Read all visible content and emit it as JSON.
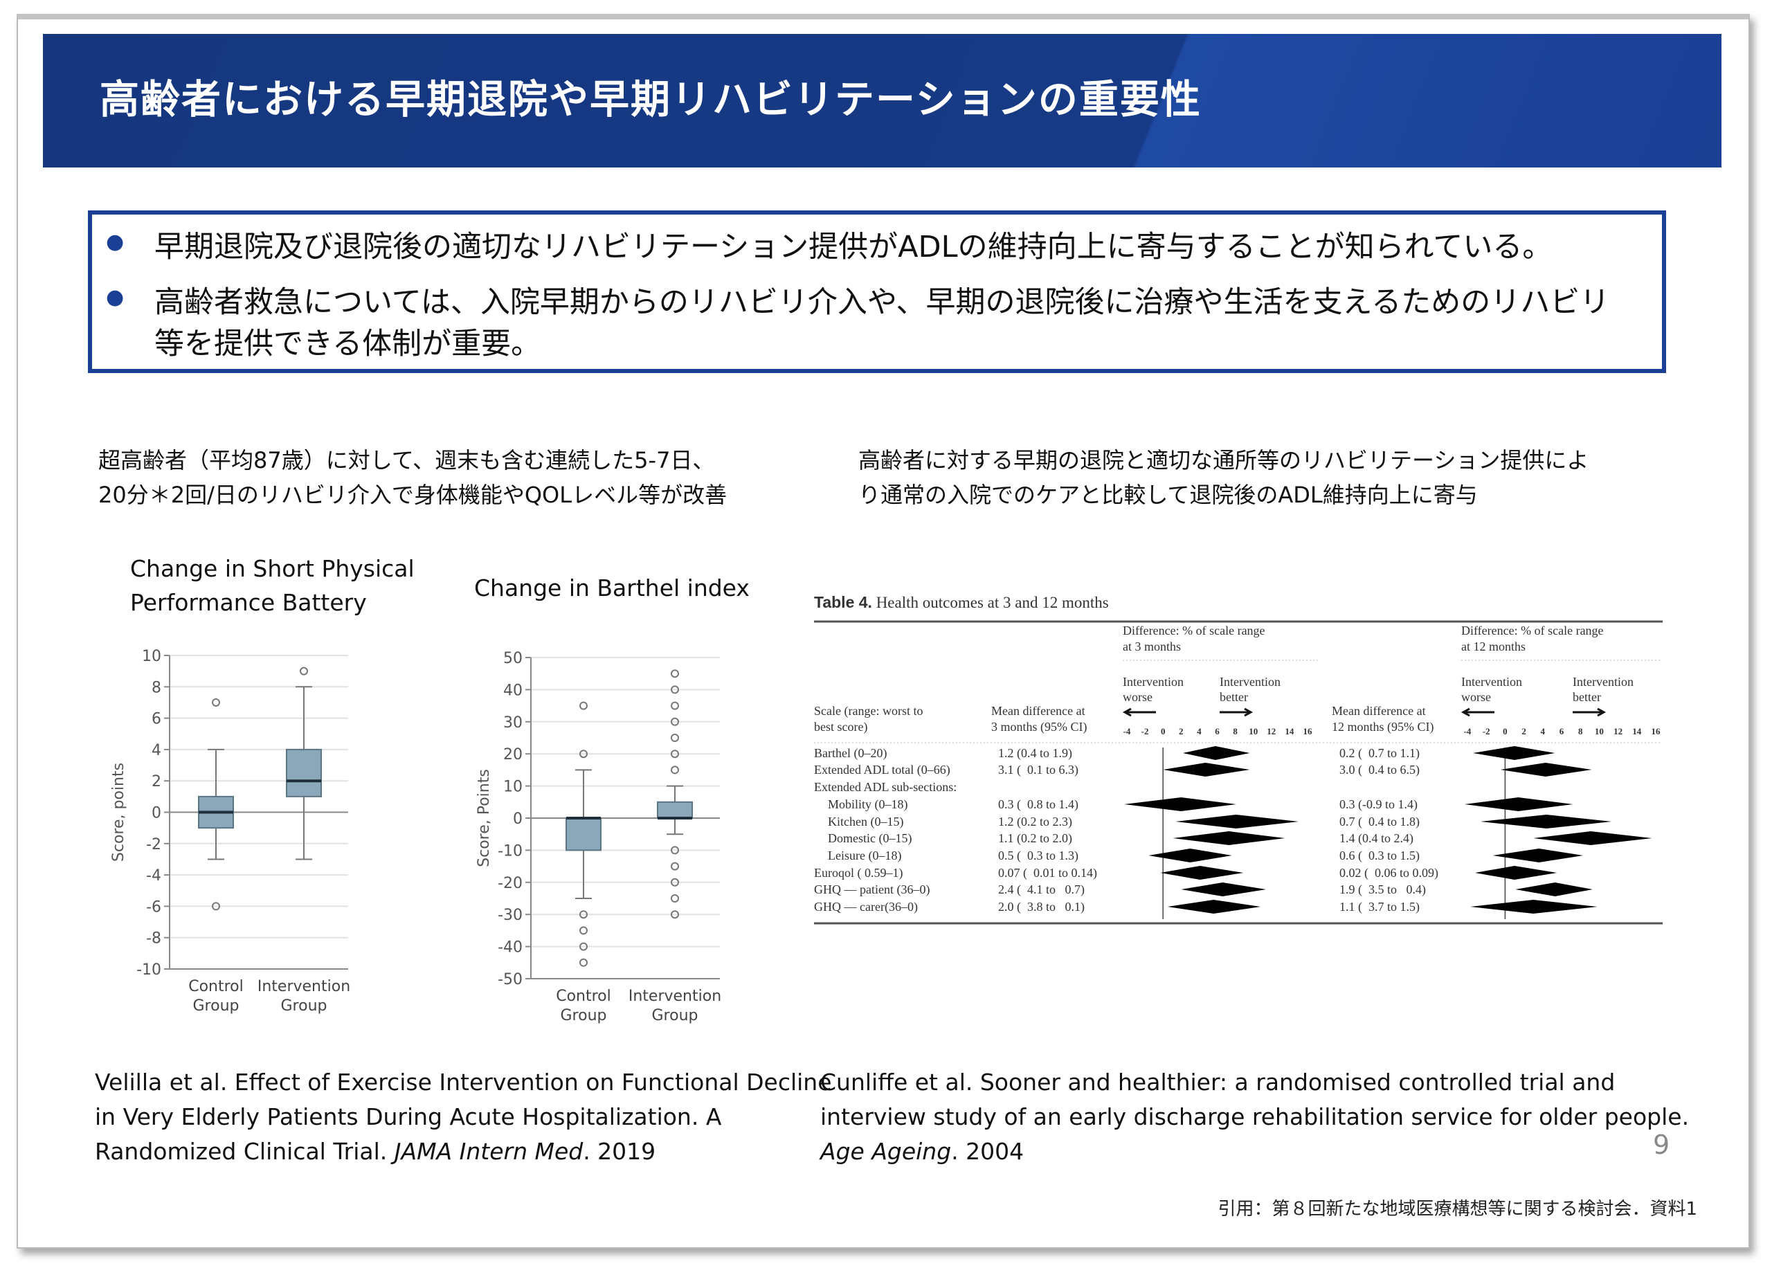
{
  "header": {
    "title": "高齢者における早期退院や早期リハビリテーションの重要性"
  },
  "summary": {
    "bullets": [
      {
        "lines": [
          "早期退院及び退院後の適切なリハビリテーション提供がADLの維持向上に寄与することが知られている。"
        ]
      },
      {
        "lines": [
          "高齢者救急については、入院早期からのリハビリ介入や、早期の退院後に治療や生活を支えるためのリハビリ",
          "等を提供できる体制が重要。"
        ]
      }
    ]
  },
  "left": {
    "caption": [
      "超高齢者（平均87歳）に対して、週末も含む連続した5-7日、",
      "20分＊2回/日のリハビリ介入で身体機能やQOLレベル等が改善"
    ],
    "citation": {
      "line1": "Velilla et al. Effect of Exercise Intervention on Functional Decline",
      "line2": "in Very Elderly Patients During Acute Hospitalization. A",
      "line3_pre": "Randomized Clinical Trial. ",
      "journal": "JAMA Intern Med",
      "year": ". 2019"
    }
  },
  "right": {
    "caption": [
      "高齢者に対する早期の退院と適切な通所等のリハビリテーション提供によ",
      "り通常の入院でのケアと比較して退院後のADL維持向上に寄与"
    ],
    "citation": {
      "line1": "Cunliffe et al. Sooner and healthier: a randomised controlled trial and",
      "line2": "interview study of an early discharge rehabilitation service for older people.",
      "journal": "Age Ageing",
      "year": ". 2004"
    }
  },
  "page_number": "9",
  "source": "引用：第８回新たな地域医療構想等に関する検討会．資料1",
  "colors": {
    "header": "#16377f",
    "accent": "#1c3f96",
    "box": "#8ba8ba"
  },
  "chart_data": [
    {
      "type": "box",
      "title": [
        "Change in Short Physical",
        "Performance Battery"
      ],
      "ylabel": "Score, points",
      "ylim": [
        -10,
        10
      ],
      "yticks": [
        10,
        8,
        6,
        4,
        2,
        0,
        -2,
        -4,
        -6,
        -8,
        -10
      ],
      "grid": true,
      "categories": [
        [
          "Control",
          "Group"
        ],
        [
          "Intervention",
          "Group"
        ]
      ],
      "series": [
        {
          "whisker_low": -3,
          "q1": -1,
          "median": 0,
          "q3": 1,
          "whisker_high": 4,
          "outliers": [
            7,
            -6
          ]
        },
        {
          "whisker_low": -3,
          "q1": 1,
          "median": 2,
          "q3": 4,
          "whisker_high": 8,
          "outliers": [
            9
          ]
        }
      ]
    },
    {
      "type": "box",
      "title": [
        "Change in Barthel index"
      ],
      "ylabel": "Score, Points",
      "ylim": [
        -50,
        50
      ],
      "yticks": [
        50,
        40,
        30,
        20,
        10,
        0,
        -10,
        -20,
        -30,
        -40,
        -50
      ],
      "grid": true,
      "categories": [
        [
          "Control",
          "Group"
        ],
        [
          "Intervention",
          "Group"
        ]
      ],
      "series": [
        {
          "whisker_low": -25,
          "q1": -10,
          "median": 0,
          "q3": 0,
          "whisker_high": 15,
          "outliers": [
            35,
            20,
            -30,
            -35,
            -40,
            -45
          ]
        },
        {
          "whisker_low": -5,
          "q1": 0,
          "median": 0,
          "q3": 5,
          "whisker_high": 10,
          "outliers": [
            45,
            40,
            35,
            30,
            25,
            20,
            15,
            -10,
            -15,
            -20,
            -25,
            -30
          ]
        }
      ]
    },
    {
      "type": "table",
      "title_bold": "Table 4.",
      "title": " Health outcomes at 3 and 12 months",
      "headers": {
        "scale": [
          "Scale (range: worst to",
          "best score)"
        ],
        "mean3": [
          "Mean difference at",
          "3 months (95% CI)"
        ],
        "mean12": [
          "Mean difference at",
          "12 months (95% CI)"
        ],
        "diff3": [
          "Difference: % of scale range",
          "at 3 months"
        ],
        "diff12": [
          "Difference: % of scale range",
          "at 12 months"
        ],
        "worse": [
          "Intervention",
          "worse"
        ],
        "better": [
          "Intervention",
          "better"
        ]
      },
      "axis_ticks": [
        -4,
        -2,
        0,
        2,
        4,
        6,
        8,
        10,
        12,
        14,
        16
      ],
      "xlim": [
        -4,
        16
      ],
      "rows": [
        {
          "scale": "Barthel (0–20)",
          "mean3": "1.2 (0.4 to 1.9)",
          "mean12": "0.2 (  0.7 to 1.1)",
          "d3": [
            2.2,
            5.8,
            9.6
          ],
          "d12": [
            -3.4,
            1.0,
            5.3
          ]
        },
        {
          "scale": "Extended ADL total (0–66)",
          "mean3": "3.1 (  0.1 to 6.3)",
          "mean12": "3.0 (  0.4 to 6.5)",
          "d3": [
            0,
            4.7,
            9.6
          ],
          "d12": [
            -0.5,
            4.3,
            9.2
          ]
        },
        {
          "scale": "Extended ADL sub-sections:",
          "mean3": "",
          "mean12": ""
        },
        {
          "scale": "Mobility (0–18)",
          "indent": true,
          "mean3": "0.3 (  0.8 to 1.4)",
          "mean12": "0.3 (-0.9 to 1.4)",
          "d3": [
            -4.3,
            2.0,
            8.1
          ],
          "d12": [
            -4.3,
            1.4,
            7.2
          ]
        },
        {
          "scale": "Kitchen (0–15)",
          "indent": true,
          "mean3": "1.2 (0.2 to 2.3)",
          "mean12": "0.7 (  0.4 to 1.8)",
          "d3": [
            1.4,
            8.1,
            15.0
          ],
          "d12": [
            -2.6,
            4.4,
            11.3
          ]
        },
        {
          "scale": "Domestic (0–15)",
          "indent": true,
          "mean3": "1.1 (0.2 to 2.0)",
          "mean12": "1.4 (0.4 to 2.4)",
          "d3": [
            1.1,
            7.3,
            13.5
          ],
          "d12": [
            3.0,
            9.1,
            15.6
          ]
        },
        {
          "scale": "Leisure (0–18)",
          "indent": true,
          "mean3": "0.5 (  0.3 to 1.3)",
          "mean12": "0.6 (  0.3 to 1.5)",
          "d3": [
            -1.6,
            3.0,
            7.6
          ],
          "d12": [
            -1.3,
            3.6,
            8.3
          ]
        },
        {
          "scale": "Euroqol (  0.59–1)",
          "mean3": "0.07 (  0.01 to 0.14)",
          "mean12": "0.02 (  0.06 to 0.09)",
          "d3": [
            -0.3,
            4.1,
            8.9
          ],
          "d12": [
            -3.2,
            1.0,
            5.5
          ]
        },
        {
          "scale": "GHQ — patient (36–0)",
          "mean3": "2.4 (  4.1 to   0.7)",
          "mean12": "1.9 (  3.5 to   0.4)",
          "d3": [
            2.0,
            6.6,
            11.4
          ],
          "d12": [
            1.1,
            5.3,
            9.3
          ]
        },
        {
          "scale": "GHQ — carer(36–0)",
          "mean3": "2.0 (  3.8 to   0.1)",
          "mean12": "1.1 (  3.7 to 1.5)",
          "d3": [
            0.5,
            5.6,
            10.8
          ],
          "d12": [
            -3.7,
            3.0,
            9.8
          ]
        }
      ]
    }
  ]
}
